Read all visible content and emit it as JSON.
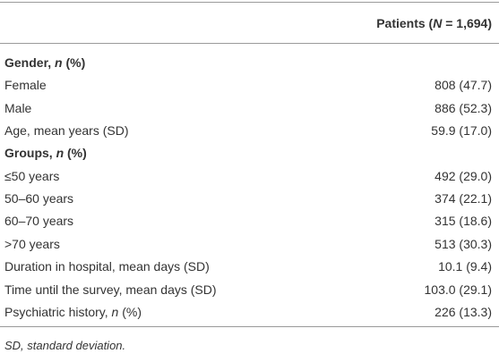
{
  "table": {
    "header": [
      "Patients (",
      "N",
      " = 1,694)"
    ],
    "rows": [
      {
        "label": [
          "Gender, ",
          "n",
          " (%)"
        ],
        "section": true
      },
      {
        "label": [
          "Female"
        ],
        "value": "808 (47.7)"
      },
      {
        "label": [
          "Male"
        ],
        "value": "886 (52.3)"
      },
      {
        "label": [
          "Age, mean years (SD)"
        ],
        "value": "59.9 (17.0)"
      },
      {
        "label": [
          "Groups, ",
          "n",
          " (%)"
        ],
        "section": true
      },
      {
        "label": [
          "≤50 years"
        ],
        "value": "492 (29.0)"
      },
      {
        "label": [
          "50–60 years"
        ],
        "value": "374 (22.1)"
      },
      {
        "label": [
          "60–70 years"
        ],
        "value": "315 (18.6)"
      },
      {
        "label": [
          ">70 years"
        ],
        "value": "513 (30.3)"
      },
      {
        "label": [
          "Duration in hospital, mean days (SD)"
        ],
        "value": "10.1 (9.4)"
      },
      {
        "label": [
          "Time until the survey, mean days (SD)"
        ],
        "value": "103.0 (29.1)"
      },
      {
        "label": [
          "Psychiatric history, ",
          "n",
          " (%)"
        ],
        "value": "226 (13.3)"
      }
    ],
    "footnote": "SD, standard deviation."
  }
}
